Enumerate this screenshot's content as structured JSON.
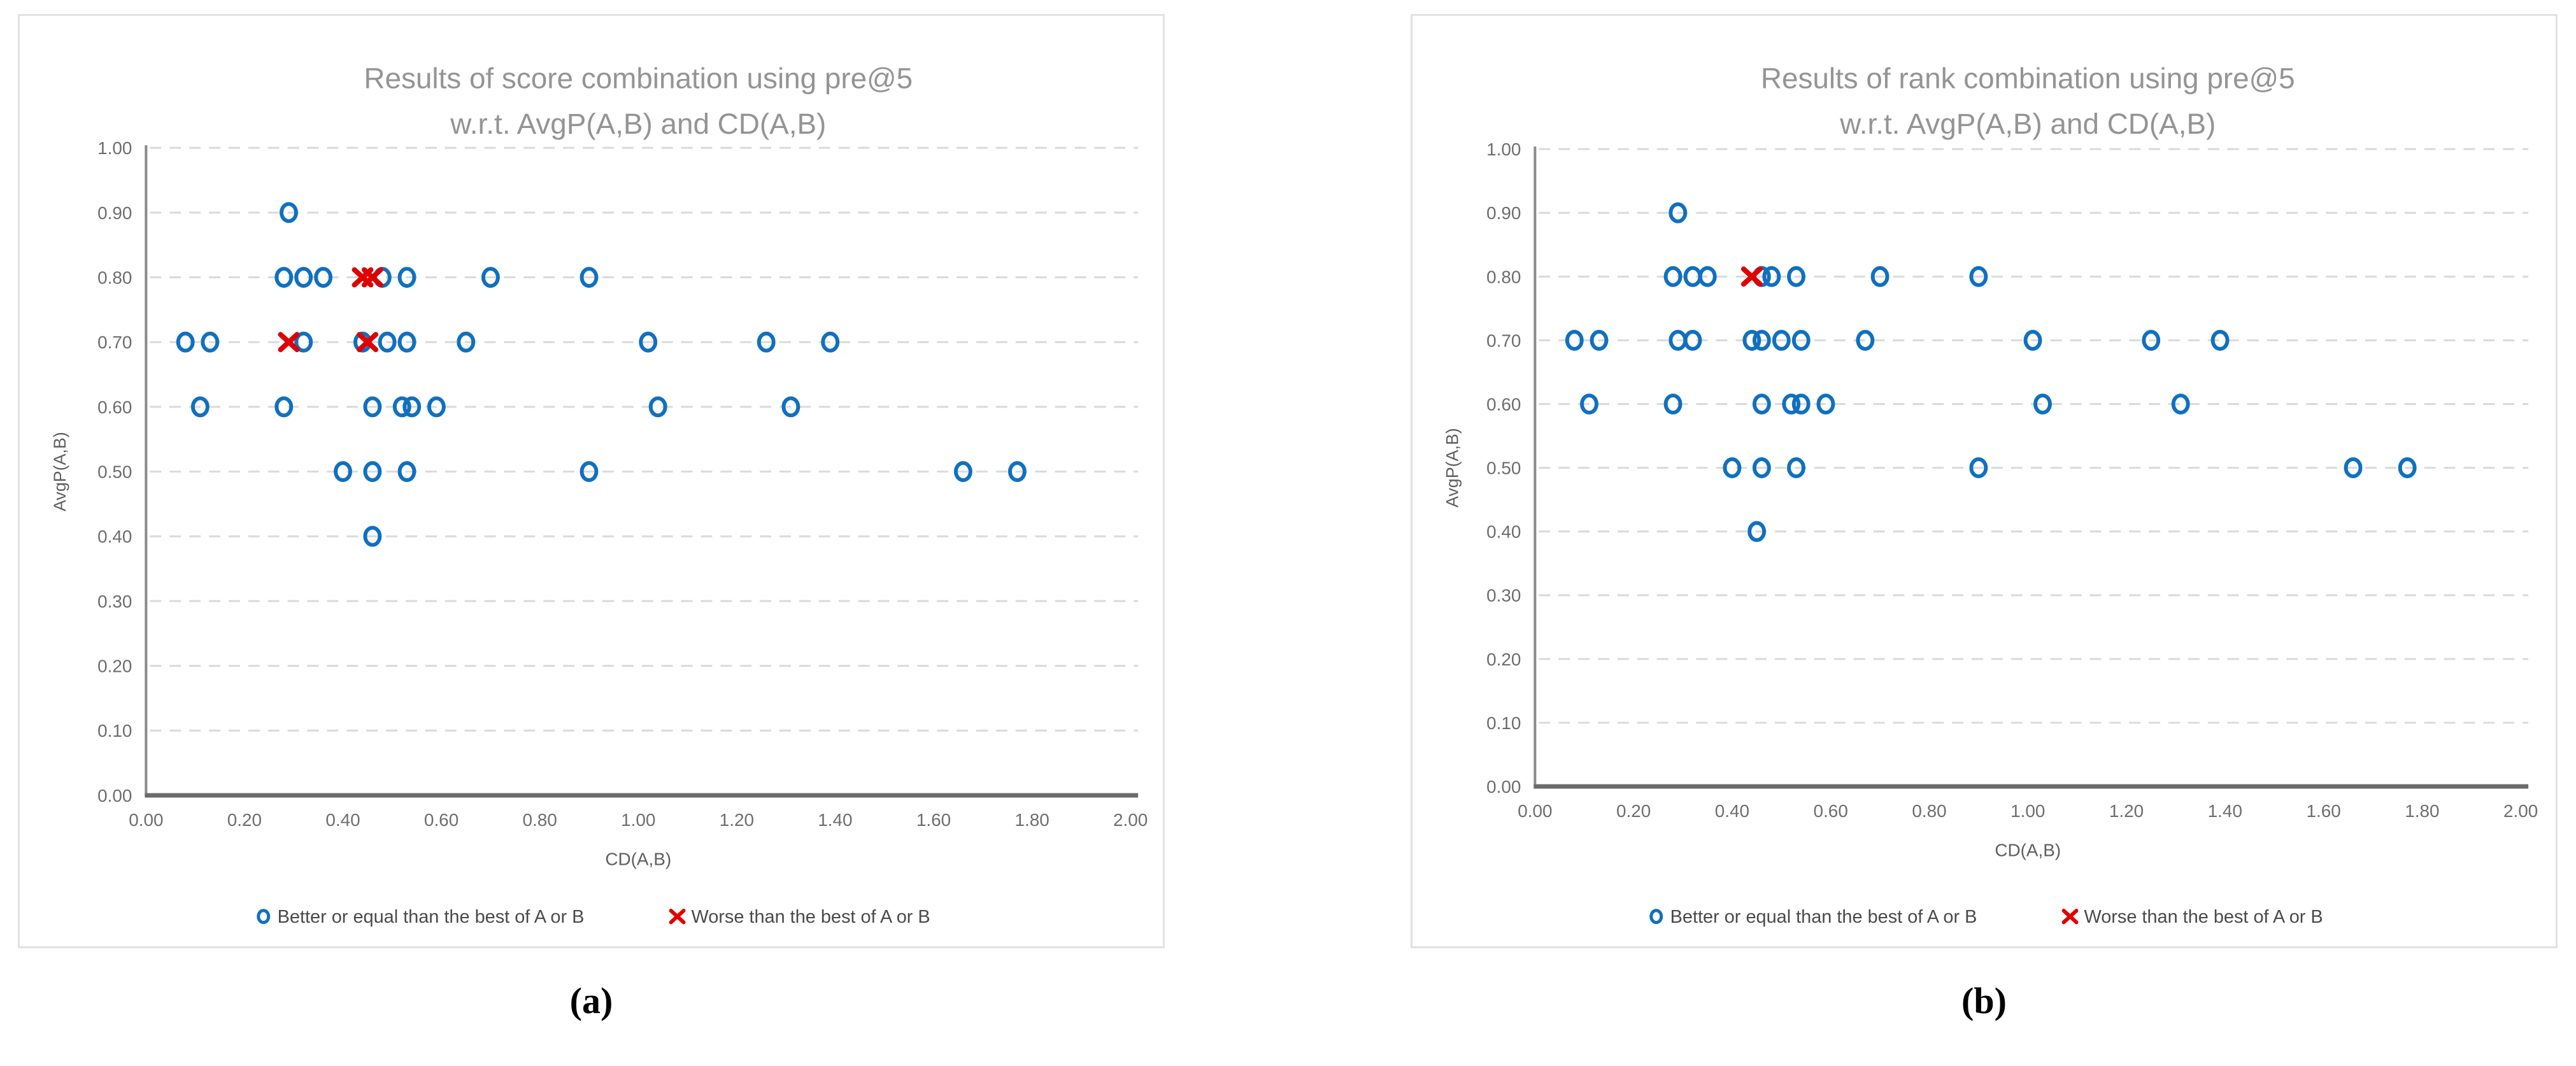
{
  "captions": {
    "a": "(a)",
    "b": "(b)"
  },
  "colors": {
    "better_marker": "#1070C0",
    "worse_marker": "#E00000",
    "chart_title": "#949494",
    "tick_label": "#6E6E6E",
    "axis_title": "#5F5F5F",
    "legend_label": "#4A4A4A",
    "gridline": "#DADADA",
    "x_axis_line": "#6B6B6B",
    "y_axis_line": "#8A8A8A",
    "panel_border": "#E2E2E2",
    "caption_text": "#000000"
  },
  "chart_data": [
    {
      "id": "a",
      "type": "scatter",
      "title": [
        "Results of score combination using pre@5",
        "w.r.t. AvgP(A,B) and CD(A,B)"
      ],
      "xlabel": "CD(A,B)",
      "ylabel": "AvgP(A,B)",
      "xlim": [
        0.0,
        2.0
      ],
      "ylim": [
        0.0,
        1.0
      ],
      "x_tick_labels": [
        "0.00",
        "0.20",
        "0.40",
        "0.60",
        "0.80",
        "1.00",
        "1.20",
        "1.40",
        "1.60",
        "1.80",
        "2.00"
      ],
      "y_tick_labels": [
        "0.00",
        "0.10",
        "0.20",
        "0.30",
        "0.40",
        "0.50",
        "0.60",
        "0.70",
        "0.80",
        "0.90",
        "1.00"
      ],
      "grid": "horizontal-dashed",
      "legend_position": "bottom",
      "series": [
        {
          "name": "Better or equal than the best of A or B",
          "marker": "circle",
          "points": [
            [
              0.29,
              0.9
            ],
            [
              0.28,
              0.8
            ],
            [
              0.32,
              0.8
            ],
            [
              0.36,
              0.8
            ],
            [
              0.48,
              0.8
            ],
            [
              0.53,
              0.8
            ],
            [
              0.7,
              0.8
            ],
            [
              0.9,
              0.8
            ],
            [
              0.08,
              0.7
            ],
            [
              0.13,
              0.7
            ],
            [
              0.32,
              0.7
            ],
            [
              0.44,
              0.7
            ],
            [
              0.49,
              0.7
            ],
            [
              0.53,
              0.7
            ],
            [
              0.65,
              0.7
            ],
            [
              1.02,
              0.7
            ],
            [
              1.26,
              0.7
            ],
            [
              1.39,
              0.7
            ],
            [
              0.11,
              0.6
            ],
            [
              0.28,
              0.6
            ],
            [
              0.46,
              0.6
            ],
            [
              0.52,
              0.6
            ],
            [
              0.54,
              0.6
            ],
            [
              0.59,
              0.6
            ],
            [
              1.04,
              0.6
            ],
            [
              1.31,
              0.6
            ],
            [
              0.4,
              0.5
            ],
            [
              0.46,
              0.5
            ],
            [
              0.53,
              0.5
            ],
            [
              0.9,
              0.5
            ],
            [
              1.66,
              0.5
            ],
            [
              1.77,
              0.5
            ],
            [
              0.46,
              0.4
            ]
          ]
        },
        {
          "name": "Worse than the best of A or B",
          "marker": "x",
          "points": [
            [
              0.44,
              0.8
            ],
            [
              0.46,
              0.8
            ],
            [
              0.29,
              0.7
            ],
            [
              0.45,
              0.7
            ]
          ]
        }
      ]
    },
    {
      "id": "b",
      "type": "scatter",
      "title": [
        "Results of rank combination using pre@5",
        "w.r.t. AvgP(A,B) and CD(A,B)"
      ],
      "xlabel": "CD(A,B)",
      "ylabel": "AvgP(A,B)",
      "xlim": [
        0.0,
        2.0
      ],
      "ylim": [
        0.0,
        1.0
      ],
      "x_tick_labels": [
        "0.00",
        "0.20",
        "0.40",
        "0.60",
        "0.80",
        "1.00",
        "1.20",
        "1.40",
        "1.60",
        "1.80",
        "2.00"
      ],
      "y_tick_labels": [
        "0.00",
        "0.10",
        "0.20",
        "0.30",
        "0.40",
        "0.50",
        "0.60",
        "0.70",
        "0.80",
        "0.90",
        "1.00"
      ],
      "grid": "horizontal-dashed",
      "legend_position": "bottom",
      "series": [
        {
          "name": "Better or equal than the best of A or B",
          "marker": "circle",
          "points": [
            [
              0.29,
              0.9
            ],
            [
              0.28,
              0.8
            ],
            [
              0.32,
              0.8
            ],
            [
              0.35,
              0.8
            ],
            [
              0.46,
              0.8
            ],
            [
              0.48,
              0.8
            ],
            [
              0.53,
              0.8
            ],
            [
              0.7,
              0.8
            ],
            [
              0.9,
              0.8
            ],
            [
              0.08,
              0.7
            ],
            [
              0.13,
              0.7
            ],
            [
              0.29,
              0.7
            ],
            [
              0.32,
              0.7
            ],
            [
              0.44,
              0.7
            ],
            [
              0.46,
              0.7
            ],
            [
              0.5,
              0.7
            ],
            [
              0.54,
              0.7
            ],
            [
              0.67,
              0.7
            ],
            [
              1.01,
              0.7
            ],
            [
              1.25,
              0.7
            ],
            [
              1.39,
              0.7
            ],
            [
              0.11,
              0.6
            ],
            [
              0.28,
              0.6
            ],
            [
              0.46,
              0.6
            ],
            [
              0.52,
              0.6
            ],
            [
              0.54,
              0.6
            ],
            [
              0.59,
              0.6
            ],
            [
              1.03,
              0.6
            ],
            [
              1.31,
              0.6
            ],
            [
              0.4,
              0.5
            ],
            [
              0.46,
              0.5
            ],
            [
              0.53,
              0.5
            ],
            [
              0.9,
              0.5
            ],
            [
              1.66,
              0.5
            ],
            [
              1.77,
              0.5
            ],
            [
              0.45,
              0.4
            ]
          ]
        },
        {
          "name": "Worse than the best of A or B",
          "marker": "x",
          "points": [
            [
              0.44,
              0.8
            ]
          ]
        }
      ]
    }
  ]
}
